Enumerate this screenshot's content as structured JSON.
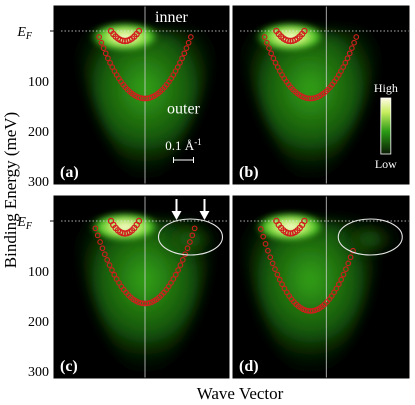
{
  "figure": {
    "ylabel": "Binding Energy (meV)",
    "xlabel": "Wave Vector",
    "ef_label": "E",
    "ef_sub": "F",
    "yticks": [
      "100",
      "200",
      "300"
    ],
    "colorbar": {
      "high": "High",
      "low": "Low"
    },
    "scalebar": {
      "value": "0.1 Å",
      "exp": "-1"
    },
    "band_labels": {
      "inner": "inner",
      "outer": "outer"
    },
    "colors": {
      "background": "#000000",
      "intensity_low": "#0a2a05",
      "intensity_mid": "#3fc21e",
      "intensity_high": "#fff8c8",
      "marker": "#d21e1e",
      "ellipse": "#e6e6e6",
      "arrow": "#ffffff"
    }
  },
  "panels": [
    {
      "label": "(a)"
    },
    {
      "label": "(b)"
    },
    {
      "label": "(c)"
    },
    {
      "label": "(d)"
    }
  ],
  "chart_data": {
    "type": "scatter",
    "xlabel": "Wave Vector",
    "ylabel": "Binding Energy (meV)",
    "ylim": [
      300,
      0
    ],
    "y_unit": "meV",
    "y_axis_inverted": true,
    "panels": [
      {
        "label": "(a)",
        "inner_band_bottom_meV": 20,
        "outer_band_bottom_meV": 135
      },
      {
        "label": "(b)",
        "inner_band_bottom_meV": 20,
        "outer_band_bottom_meV": 135
      },
      {
        "label": "(c)",
        "inner_band_bottom_meV": 25,
        "outer_band_bottom_meV": 165,
        "annotation": "ellipse with two arrows near E_F"
      },
      {
        "label": "(d)",
        "inner_band_bottom_meV": 25,
        "outer_band_bottom_meV": 180,
        "annotation": "ellipse near E_F"
      }
    ]
  }
}
